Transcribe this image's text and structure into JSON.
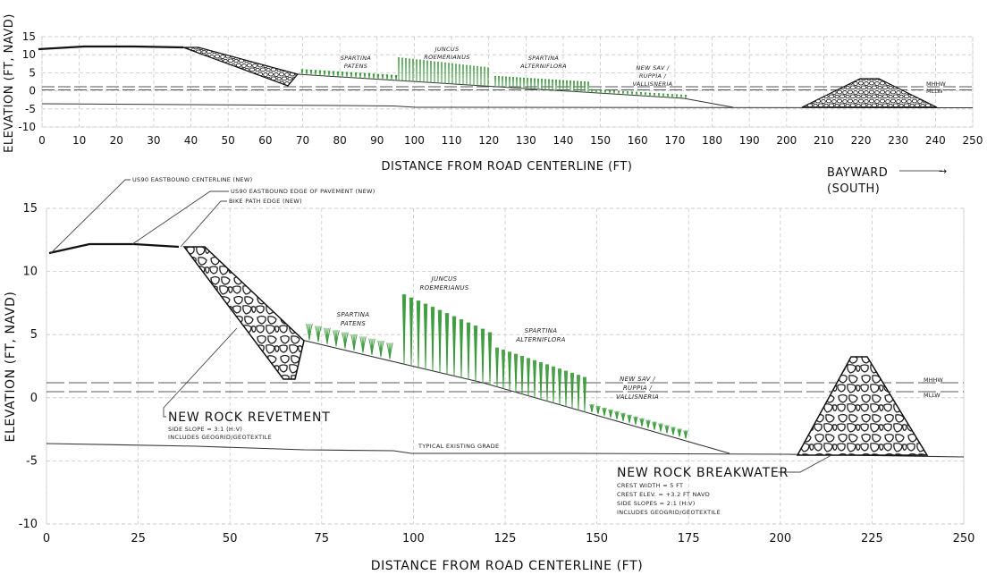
{
  "top_panel": {
    "ylabel": "ELEVATION (FT, NAVD)",
    "xlabel": "DISTANCE FROM ROAD CENTERLINE (FT)",
    "x_ticks": [
      "0",
      "10",
      "20",
      "30",
      "40",
      "50",
      "60",
      "70",
      "80",
      "90",
      "100",
      "110",
      "120",
      "130",
      "140",
      "150",
      "160",
      "170",
      "180",
      "190",
      "200",
      "210",
      "220",
      "230",
      "240",
      "250"
    ],
    "y_ticks": [
      "15",
      "10",
      "5",
      "0",
      "-5",
      "-10"
    ],
    "veg_labels": {
      "spartina_patens": [
        "SPARTINA",
        "PATENS"
      ],
      "juncus": [
        "JUNCUS",
        "ROEMERIANUS"
      ],
      "spartina_alterniflora": [
        "SPARTINA",
        "ALTERNIFLORA"
      ],
      "sav": [
        "NEW SAV /",
        "RUPPIA /",
        "VALLISNERIA"
      ]
    },
    "tide_labels": [
      "MHHW",
      "MLLW"
    ]
  },
  "direction": {
    "line1": "BAYWARD",
    "line2": "(SOUTH)",
    "arrow": "→"
  },
  "bottom_panel": {
    "ylabel": "ELEVATION (FT, NAVD)",
    "xlabel": "DISTANCE FROM ROAD CENTERLINE (FT)",
    "x_ticks": [
      "0",
      "25",
      "50",
      "75",
      "100",
      "125",
      "150",
      "175",
      "200",
      "225",
      "250"
    ],
    "y_ticks": [
      "15",
      "10",
      "5",
      "0",
      "-5",
      "-10"
    ],
    "callouts": {
      "centerline": "US90 EASTBOUND CENTERLINE (NEW)",
      "pavement": "US90 EASTBOUND EDGE OF PAVEMENT (NEW)",
      "bike": "BIKE PATH EDGE (NEW)",
      "existing_grade": "TYPICAL EXISTING GRADE"
    },
    "veg_labels": {
      "spartina_patens": [
        "SPARTINA",
        "PATENS"
      ],
      "juncus": [
        "JUNCUS",
        "ROEMERIANUS"
      ],
      "spartina_alterniflora": [
        "SPARTINA",
        "ALTERNIFLORA"
      ],
      "sav": [
        "NEW SAV /",
        "RUPPIA /",
        "VALLISNERIA"
      ]
    },
    "tide_labels": [
      "MHHW",
      "MLLW"
    ],
    "revetment": {
      "title": "NEW ROCK REVETMENT",
      "notes": [
        "SIDE SLOPE = 3:1 (H:V)",
        "INCLUDES GEOGRID/GEOTEXTILE"
      ]
    },
    "breakwater": {
      "title": "NEW ROCK BREAKWATER",
      "notes": [
        "CREST WIDTH = 5 FT",
        "CREST ELEV. = +3.2 FT NAVD",
        "SIDE SLOPES = 2:1 (H:V)",
        "INCLUDES GEOGRID/GEOTEXTILE"
      ]
    }
  },
  "profile": {
    "road_surface": [
      [
        0,
        11.5
      ],
      [
        12,
        12.2
      ],
      [
        25,
        12.2
      ],
      [
        36,
        12
      ]
    ],
    "existing_grade": [
      [
        0,
        -3.6
      ],
      [
        40,
        -3.8
      ],
      [
        70,
        -4.0
      ],
      [
        95,
        -4.2
      ],
      [
        100,
        -4.5
      ],
      [
        150,
        -4.5
      ],
      [
        200,
        -4.6
      ],
      [
        250,
        -4.8
      ]
    ],
    "marsh_slope": [
      [
        68,
        4.6
      ],
      [
        120,
        1.0
      ],
      [
        185,
        -4.5
      ]
    ],
    "mhhw": 1.2,
    "mllw": 0.5,
    "revetment_crest": [
      [
        38,
        12
      ],
      [
        43,
        12
      ]
    ],
    "breakwater_crest_elev": 3.2
  },
  "colors": {
    "vegetation": "#3b9a3b",
    "ink": "#111111",
    "grid": "#c8c8c8"
  }
}
